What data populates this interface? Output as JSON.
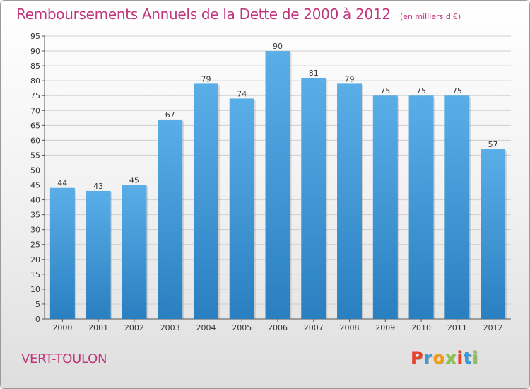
{
  "header": {
    "title": "Remboursements Annuels de la Dette de 2000 à 2012",
    "subtitle": "(en milliers d'€)"
  },
  "footer": {
    "commune": "VERT-TOULON",
    "logo_text": "Proxiti"
  },
  "colors": {
    "title": "#c0367b",
    "bar_top": "#5aaee8",
    "bar_bottom": "#2a7fc0",
    "grid": "#cfcfcf",
    "axis": "#555555",
    "logo_letters": [
      "#e8412c",
      "#3a9bdc",
      "#f39c12",
      "#8bc34a",
      "#e8412c",
      "#3a9bdc",
      "#8bc34a"
    ]
  },
  "chart_data": {
    "type": "bar",
    "title": "Remboursements Annuels de la Dette de 2000 à 2012",
    "subtitle": "(en milliers d'€)",
    "categories": [
      "2000",
      "2001",
      "2002",
      "2003",
      "2004",
      "2005",
      "2006",
      "2007",
      "2008",
      "2009",
      "2010",
      "2011",
      "2012"
    ],
    "values": [
      44,
      43,
      45,
      67,
      79,
      74,
      90,
      81,
      79,
      75,
      75,
      75,
      57
    ],
    "ylim": [
      0,
      95
    ],
    "ytick_step": 5,
    "grid": true,
    "data_labels": true,
    "xlabel": "",
    "ylabel": ""
  }
}
